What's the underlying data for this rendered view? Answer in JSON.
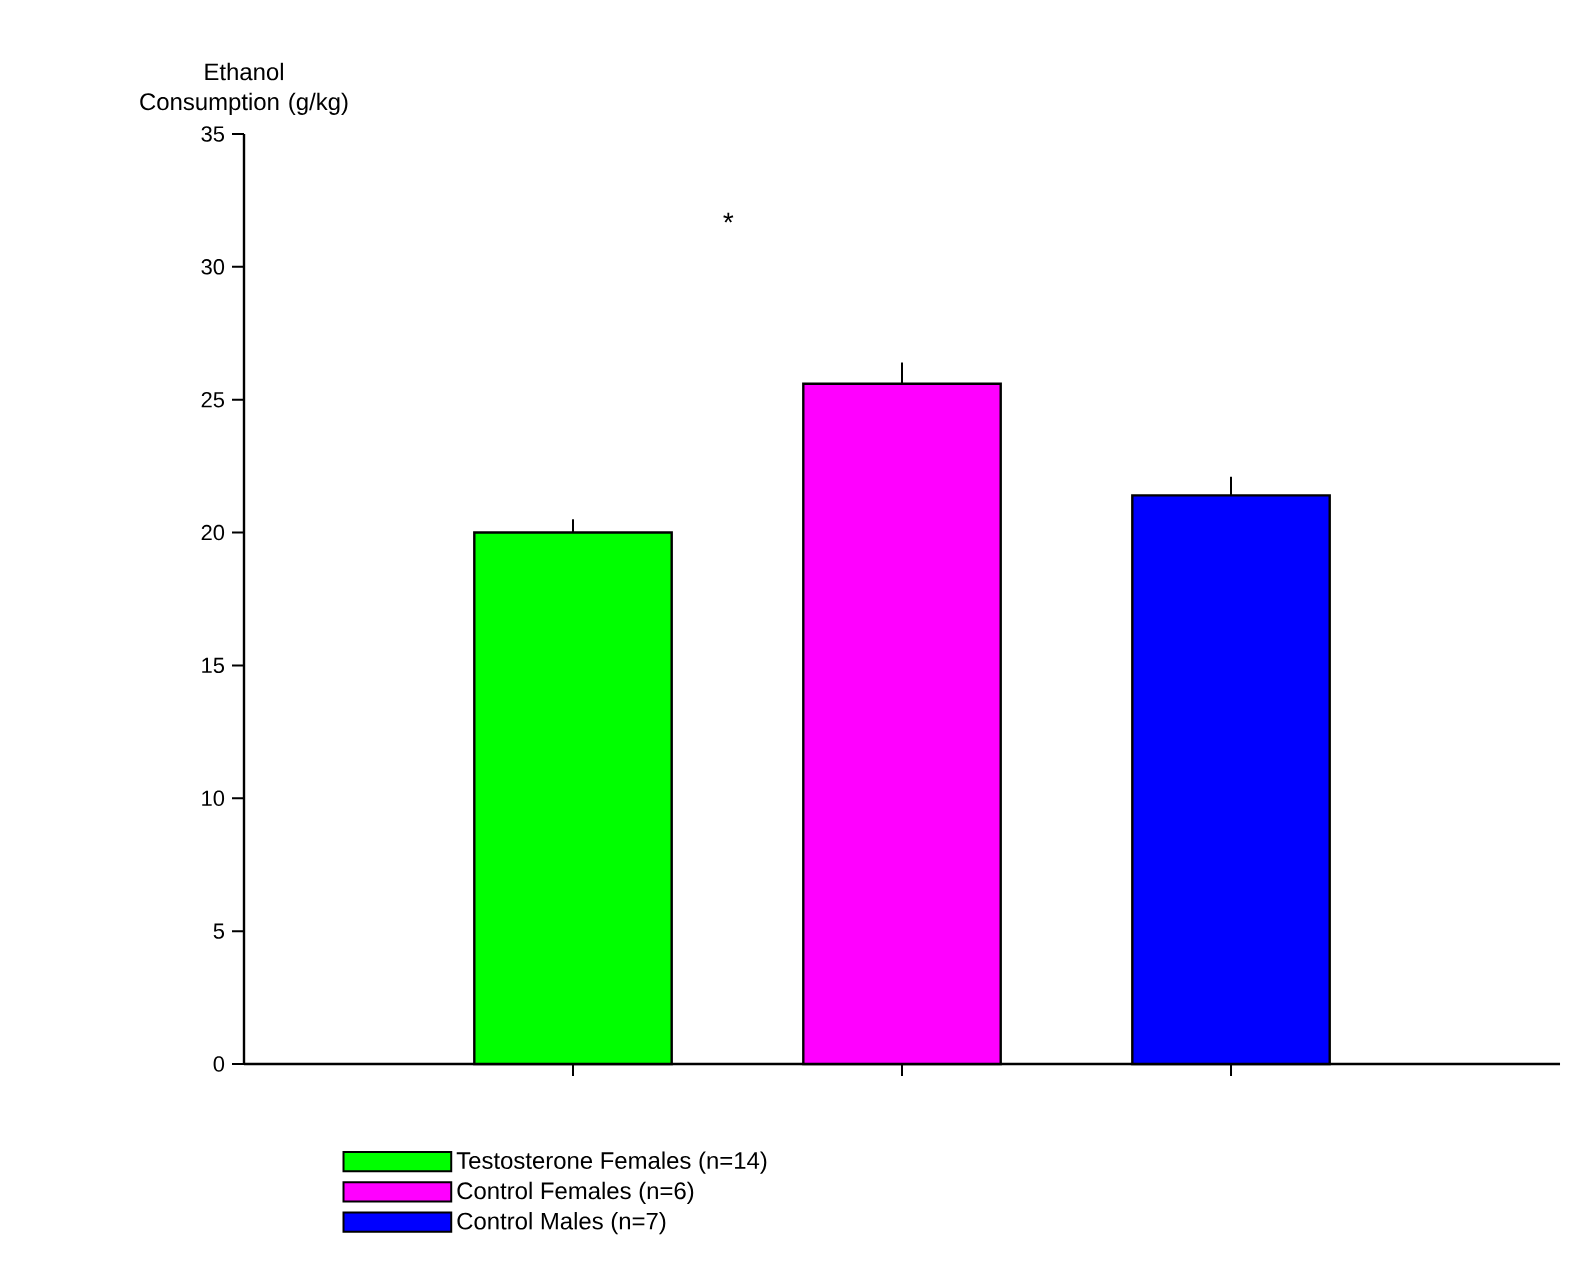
{
  "chart_data": {
    "type": "bar",
    "ylabel": "Ethanol Consumption (g/kg)",
    "categories": [
      null,
      null,
      null
    ],
    "series": [
      {
        "name": "Testosterone Females (n=14)",
        "color": "#00ff00",
        "values": [
          20,
          null,
          null
        ],
        "errors": [
          0.5,
          null,
          null
        ]
      },
      {
        "name": "Control Females (n=6)",
        "color": "#ff00ff",
        "values": [
          null,
          25.6,
          null
        ],
        "errors": [
          null,
          0.8,
          null
        ]
      },
      {
        "name": "Control Males (n=7)",
        "color": "#0000ff",
        "values": [
          null,
          null,
          21.4
        ],
        "errors": [
          null,
          null,
          0.7
        ]
      }
    ],
    "ylim": [
      0,
      35
    ],
    "yticks": [
      0,
      5,
      10,
      15,
      20,
      25,
      30,
      35
    ],
    "grid": false,
    "legend": "bottom",
    "annotations": [
      "*"
    ]
  }
}
